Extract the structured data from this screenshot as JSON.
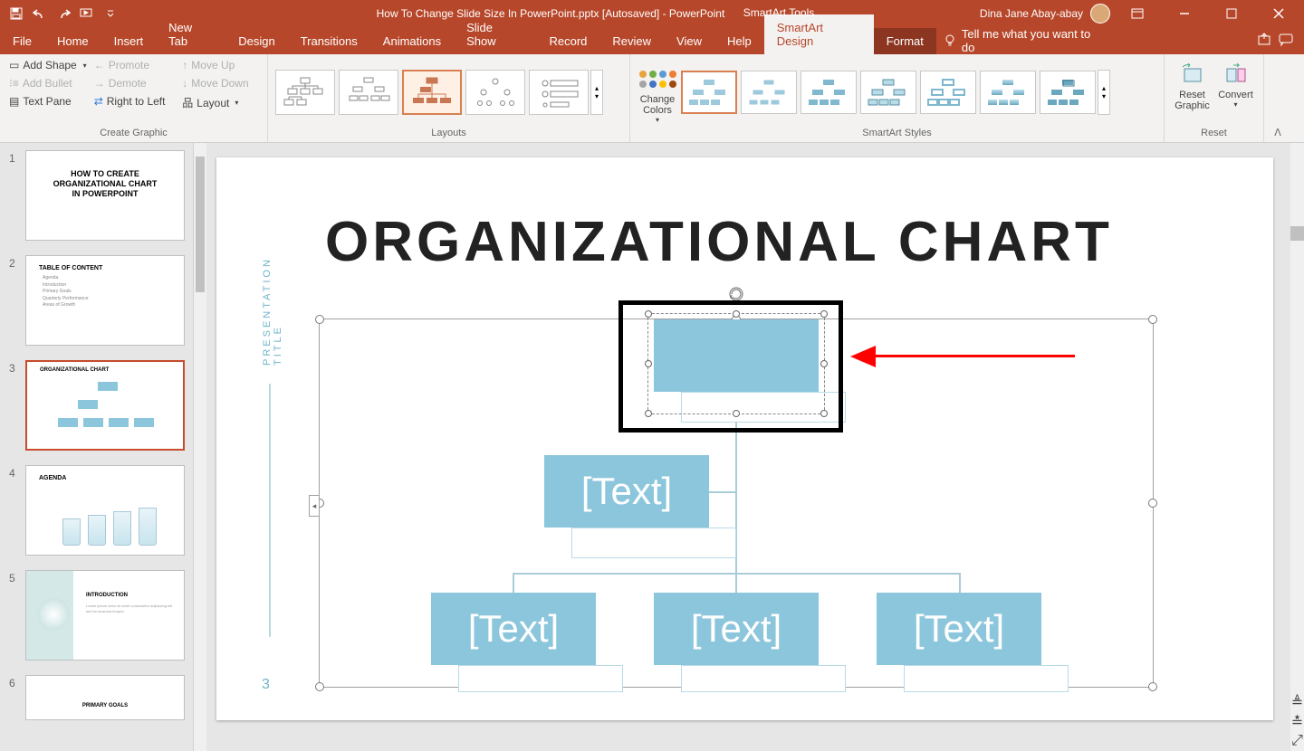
{
  "titlebar": {
    "doc_title": "How To Change Slide Size In PowerPoint.pptx [Autosaved]  -  PowerPoint",
    "context_tool": "SmartArt Tools",
    "user_name": "Dina Jane Abay-abay"
  },
  "menu": {
    "file": "File",
    "home": "Home",
    "insert": "Insert",
    "newtab": "New Tab",
    "design": "Design",
    "transitions": "Transitions",
    "animations": "Animations",
    "slideshow": "Slide Show",
    "record": "Record",
    "review": "Review",
    "view": "View",
    "help": "Help",
    "smartart_design": "SmartArt Design",
    "format": "Format",
    "tellme_placeholder": "Tell me what you want to do"
  },
  "ribbon": {
    "create_graphic": {
      "label": "Create Graphic",
      "add_shape": "Add Shape",
      "add_bullet": "Add Bullet",
      "text_pane": "Text Pane",
      "promote": "Promote",
      "demote": "Demote",
      "right_to_left": "Right to Left",
      "move_up": "Move Up",
      "move_down": "Move Down",
      "layout": "Layout"
    },
    "layouts": {
      "label": "Layouts"
    },
    "change_colors": "Change Colors",
    "smartart_styles": {
      "label": "SmartArt Styles"
    },
    "change_color_dots": [
      "#e8a33d",
      "#70ad47",
      "#5b9bd5",
      "#ed7d31",
      "#a5a5a5",
      "#4472c4",
      "#ffc000",
      "#9e480e"
    ],
    "reset": {
      "reset_graphic": "Reset Graphic",
      "convert": "Convert",
      "label": "Reset"
    }
  },
  "thumbnails": {
    "slides": [
      {
        "num": "1",
        "type": "title",
        "lines": [
          "HOW TO CREATE",
          "ORGANIZATIONAL CHART",
          "IN POWERPOINT"
        ]
      },
      {
        "num": "2",
        "type": "toc",
        "heading": "TABLE OF CONTENT",
        "items": [
          "Agenda",
          "Introduction",
          "Primary Goals",
          "Quarterly Performance",
          "Areas of Growth"
        ]
      },
      {
        "num": "3",
        "type": "org",
        "heading": "ORGANIZATIONAL CHART",
        "selected": true
      },
      {
        "num": "4",
        "type": "agenda",
        "heading": "AGENDA"
      },
      {
        "num": "5",
        "type": "intro",
        "heading": "INTRODUCTION"
      },
      {
        "num": "6",
        "type": "goals",
        "heading": "PRIMARY GOALS"
      }
    ]
  },
  "bigslide": {
    "side_title": "PRESENTATION TITLE",
    "page_num": "3",
    "title": "ORGANIZATIONAL CHART",
    "node_placeholder": "[Text]"
  },
  "colors": {
    "node_fill": "#8cc6dc",
    "node_border": "#b8dce8",
    "annotation_red": "#ff0000",
    "side_text": "#6fb3c9"
  }
}
